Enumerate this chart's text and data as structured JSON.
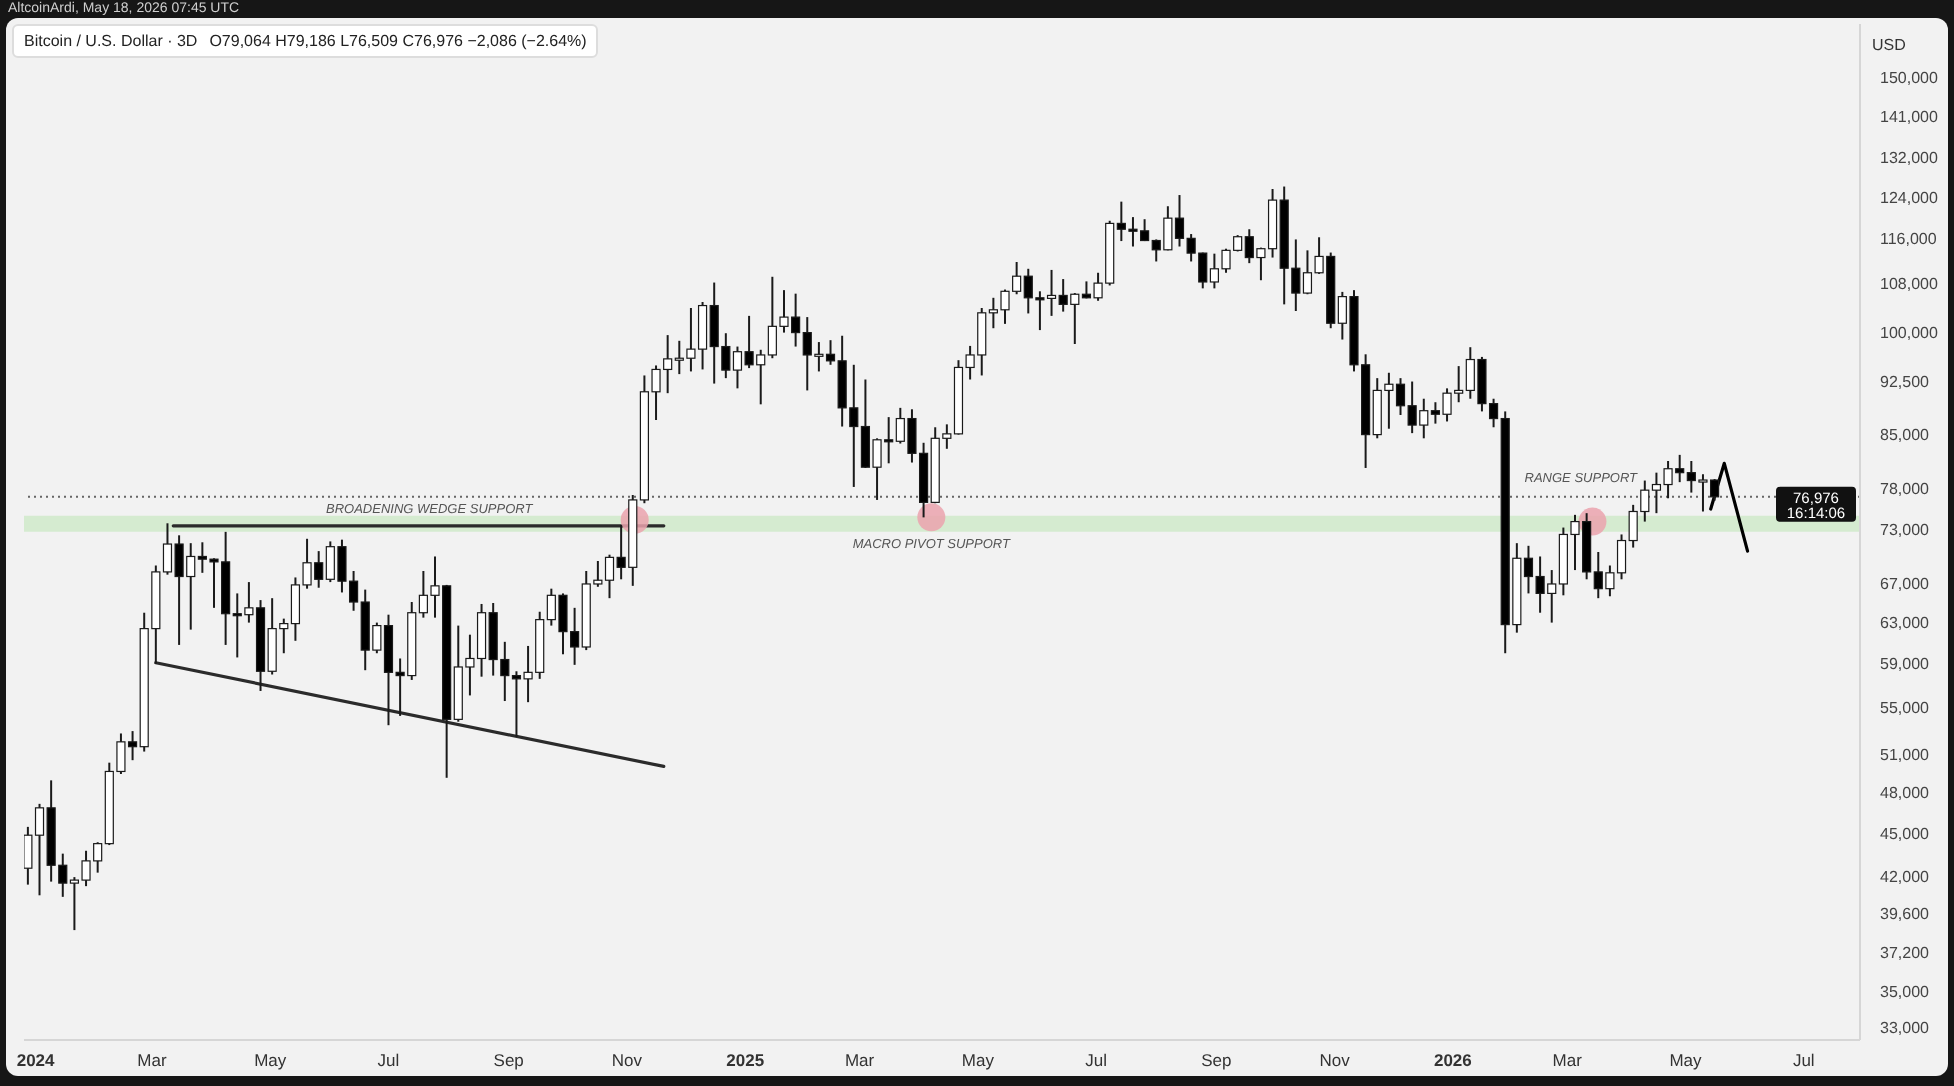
{
  "chart_data": {
    "type": "candlestick",
    "title": "Bitcoin / U.S. Dollar · 3D",
    "subtitle": "O79,064 H79,186 L76,509 C76,976 −2,086 (−2.64%)",
    "ylabel": "USD",
    "annotations": [
      "AltcoinArdi, May 18, 2026 07:45 UTC",
      {
        "text": "BROADENING WEDGE SUPPORT",
        "x": "2024-07-22",
        "y": 73500
      },
      {
        "text": "MACRO PIVOT SUPPORT",
        "x": "2025-04-07",
        "y": 74500
      },
      {
        "text": "RANGE SUPPORT",
        "x": "2026-03-08",
        "y": 74700
      }
    ],
    "x": [
      "2023-12-28",
      "2024-01-03",
      "2024-01-09",
      "2024-01-15",
      "2024-01-21",
      "2024-01-27",
      "2024-02-02",
      "2024-02-08",
      "2024-02-14",
      "2024-02-20",
      "2024-02-26",
      "2024-03-03",
      "2024-03-09",
      "2024-03-15",
      "2024-03-21",
      "2024-03-27",
      "2024-04-02",
      "2024-04-08",
      "2024-04-14",
      "2024-04-20",
      "2024-04-26",
      "2024-05-02",
      "2024-05-08",
      "2024-05-14",
      "2024-05-20",
      "2024-05-26",
      "2024-06-01",
      "2024-06-07",
      "2024-06-13",
      "2024-06-19",
      "2024-06-25",
      "2024-07-01",
      "2024-07-07",
      "2024-07-13",
      "2024-07-19",
      "2024-07-25",
      "2024-07-31",
      "2024-08-06",
      "2024-08-12",
      "2024-08-18",
      "2024-08-24",
      "2024-08-30",
      "2024-09-05",
      "2024-09-11",
      "2024-09-17",
      "2024-09-23",
      "2024-09-29",
      "2024-10-05",
      "2024-10-11",
      "2024-10-17",
      "2024-10-23",
      "2024-10-29",
      "2024-11-04",
      "2024-11-10",
      "2024-11-16",
      "2024-11-22",
      "2024-11-28",
      "2024-12-04",
      "2024-12-10",
      "2024-12-16",
      "2024-12-22",
      "2024-12-28",
      "2025-01-03",
      "2025-01-09",
      "2025-01-15",
      "2025-01-21",
      "2025-01-27",
      "2025-02-02",
      "2025-02-08",
      "2025-02-14",
      "2025-02-20",
      "2025-02-26",
      "2025-03-04",
      "2025-03-10",
      "2025-03-16",
      "2025-03-22",
      "2025-03-28",
      "2025-04-03",
      "2025-04-09",
      "2025-04-15",
      "2025-04-21",
      "2025-04-27",
      "2025-05-03",
      "2025-05-09",
      "2025-05-15",
      "2025-05-21",
      "2025-05-27",
      "2025-06-02",
      "2025-06-08",
      "2025-06-14",
      "2025-06-20",
      "2025-06-26",
      "2025-07-02",
      "2025-07-08",
      "2025-07-14",
      "2025-07-20",
      "2025-07-26",
      "2025-08-01",
      "2025-08-07",
      "2025-08-13",
      "2025-08-19",
      "2025-08-25",
      "2025-08-31",
      "2025-09-06",
      "2025-09-12",
      "2025-09-18",
      "2025-09-24",
      "2025-09-30",
      "2025-10-06",
      "2025-10-12",
      "2025-10-18",
      "2025-10-24",
      "2025-10-30",
      "2025-11-05",
      "2025-11-11",
      "2025-11-17",
      "2025-11-23",
      "2025-11-29",
      "2025-12-05",
      "2025-12-11",
      "2025-12-17",
      "2025-12-23",
      "2025-12-29",
      "2026-01-04",
      "2026-01-10",
      "2026-01-16",
      "2026-01-22",
      "2026-01-28",
      "2026-02-03",
      "2026-02-09",
      "2026-02-15",
      "2026-02-21",
      "2026-02-27",
      "2026-03-05",
      "2026-03-11",
      "2026-03-17",
      "2026-03-23",
      "2026-03-29",
      "2026-04-04",
      "2026-04-10",
      "2026-04-16",
      "2026-04-22",
      "2026-04-28",
      "2026-05-04",
      "2026-05-10",
      "2026-05-16"
    ],
    "ohlc": [
      [
        42600,
        45500,
        41500,
        44900
      ],
      [
        44900,
        47200,
        40800,
        46900
      ],
      [
        46900,
        49000,
        41700,
        42800
      ],
      [
        42800,
        43600,
        40700,
        41600
      ],
      [
        41600,
        42000,
        38600,
        41800
      ],
      [
        41800,
        43800,
        41400,
        43100
      ],
      [
        43100,
        44400,
        42300,
        44300
      ],
      [
        44300,
        50400,
        44200,
        49700
      ],
      [
        49700,
        52800,
        49500,
        52100
      ],
      [
        52100,
        53000,
        50600,
        51700
      ],
      [
        51700,
        64000,
        51300,
        62400
      ],
      [
        62400,
        69000,
        59000,
        68300
      ],
      [
        68300,
        73800,
        68000,
        71400
      ],
      [
        71400,
        72400,
        60800,
        67800
      ],
      [
        67800,
        71500,
        62300,
        70000
      ],
      [
        70000,
        71600,
        68200,
        69700
      ],
      [
        69700,
        69800,
        64500,
        69400
      ],
      [
        69400,
        72800,
        60800,
        63900
      ],
      [
        63900,
        66000,
        59600,
        63800
      ],
      [
        63800,
        67200,
        63000,
        64500
      ],
      [
        64500,
        65300,
        56500,
        58300
      ],
      [
        58300,
        65500,
        58000,
        62400
      ],
      [
        62400,
        63400,
        60000,
        62900
      ],
      [
        62900,
        67700,
        61200,
        66900
      ],
      [
        66900,
        72000,
        66500,
        69300
      ],
      [
        69300,
        70600,
        66600,
        67500
      ],
      [
        67500,
        71700,
        67200,
        71100
      ],
      [
        71100,
        71900,
        66100,
        67300
      ],
      [
        67300,
        68400,
        64200,
        65100
      ],
      [
        65100,
        66400,
        58400,
        60300
      ],
      [
        60300,
        63000,
        60000,
        62700
      ],
      [
        62700,
        63800,
        53500,
        58200
      ],
      [
        58200,
        59500,
        54300,
        57900
      ],
      [
        57900,
        65100,
        57500,
        64000
      ],
      [
        64000,
        68400,
        63500,
        65800
      ],
      [
        65800,
        70000,
        63500,
        66800
      ],
      [
        66800,
        66900,
        49200,
        54000
      ],
      [
        54000,
        62700,
        53800,
        58700
      ],
      [
        58700,
        61800,
        56100,
        59500
      ],
      [
        59500,
        64900,
        57800,
        64000
      ],
      [
        64000,
        65000,
        57900,
        59400
      ],
      [
        59400,
        61100,
        55600,
        57900
      ],
      [
        57900,
        58300,
        52500,
        57600
      ],
      [
        57600,
        60700,
        55500,
        58200
      ],
      [
        58200,
        64100,
        57600,
        63300
      ],
      [
        63300,
        66500,
        62700,
        65800
      ],
      [
        65800,
        66000,
        59900,
        62100
      ],
      [
        62100,
        64500,
        58900,
        60600
      ],
      [
        60600,
        68400,
        60300,
        67000
      ],
      [
        67000,
        69500,
        66700,
        67400
      ],
      [
        67400,
        70200,
        65500,
        69900
      ],
      [
        69900,
        73600,
        67500,
        68800
      ],
      [
        68800,
        77200,
        66800,
        76600
      ],
      [
        76600,
        93400,
        76200,
        91000
      ],
      [
        91000,
        94900,
        87000,
        94300
      ],
      [
        94300,
        99600,
        90800,
        95900
      ],
      [
        95900,
        98700,
        93600,
        96000
      ],
      [
        96000,
        104000,
        94000,
        97400
      ],
      [
        97400,
        105000,
        94300,
        104400
      ],
      [
        104400,
        108300,
        92200,
        97800
      ],
      [
        97800,
        99900,
        93000,
        94200
      ],
      [
        94200,
        97800,
        91500,
        97000
      ],
      [
        97000,
        102700,
        94500,
        95000
      ],
      [
        95000,
        97300,
        89200,
        96500
      ],
      [
        96500,
        109300,
        96000,
        101000
      ],
      [
        101000,
        107000,
        100000,
        102500
      ],
      [
        102500,
        106400,
        97800,
        100000
      ],
      [
        100000,
        102500,
        91200,
        96500
      ],
      [
        96500,
        98500,
        94000,
        96600
      ],
      [
        96600,
        98800,
        95000,
        95600
      ],
      [
        95600,
        99500,
        86100,
        88700
      ],
      [
        88700,
        95000,
        78200,
        86100
      ],
      [
        86100,
        92800,
        80600,
        80700
      ],
      [
        80700,
        84500,
        76600,
        84300
      ],
      [
        84300,
        87400,
        81200,
        84100
      ],
      [
        84100,
        88700,
        83800,
        87200
      ],
      [
        87200,
        88500,
        81300,
        82500
      ],
      [
        82500,
        83900,
        74500,
        76300
      ],
      [
        76300,
        86000,
        76200,
        84500
      ],
      [
        84500,
        86400,
        83100,
        85100
      ],
      [
        85100,
        95700,
        85000,
        94600
      ],
      [
        94600,
        97900,
        92800,
        96500
      ],
      [
        96500,
        104000,
        93400,
        103200
      ],
      [
        103200,
        105700,
        100700,
        103700
      ],
      [
        103700,
        107100,
        101400,
        106800
      ],
      [
        106800,
        111900,
        106300,
        109400
      ],
      [
        109400,
        110700,
        103100,
        105700
      ],
      [
        105700,
        106800,
        100400,
        105600
      ],
      [
        105600,
        110500,
        102700,
        106100
      ],
      [
        106100,
        108900,
        103400,
        104600
      ],
      [
        104600,
        106500,
        98200,
        106300
      ],
      [
        106300,
        108500,
        105600,
        105700
      ],
      [
        105700,
        110000,
        105200,
        108200
      ],
      [
        108200,
        119500,
        107800,
        119000
      ],
      [
        119000,
        123200,
        115700,
        117900
      ],
      [
        117900,
        120200,
        114700,
        117600
      ],
      [
        117600,
        119800,
        115700,
        115800
      ],
      [
        115800,
        116000,
        112000,
        114100
      ],
      [
        114100,
        122300,
        114000,
        120000
      ],
      [
        120000,
        124500,
        114700,
        116200
      ],
      [
        116200,
        117000,
        112000,
        113500
      ],
      [
        113500,
        113600,
        107300,
        108400
      ],
      [
        108400,
        113400,
        107300,
        110700
      ],
      [
        110700,
        114300,
        110000,
        114000
      ],
      [
        114000,
        116800,
        113800,
        116500
      ],
      [
        116500,
        117900,
        111700,
        112700
      ],
      [
        112700,
        114500,
        108700,
        114300
      ],
      [
        114300,
        125700,
        112700,
        123500
      ],
      [
        123500,
        126200,
        104600,
        110800
      ],
      [
        110800,
        116000,
        103500,
        106500
      ],
      [
        106500,
        114000,
        106300,
        110000
      ],
      [
        110000,
        116400,
        109800,
        112900
      ],
      [
        112900,
        113600,
        100700,
        101500
      ],
      [
        101500,
        106700,
        98900,
        105900
      ],
      [
        105900,
        107000,
        94000,
        95000
      ],
      [
        95000,
        96600,
        80600,
        85000
      ],
      [
        85000,
        93000,
        84500,
        91200
      ],
      [
        91200,
        93800,
        85800,
        92100
      ],
      [
        92100,
        93000,
        87700,
        89000
      ],
      [
        89000,
        92500,
        85200,
        86300
      ],
      [
        86300,
        90000,
        84500,
        88300
      ],
      [
        88300,
        89500,
        86500,
        87800
      ],
      [
        87800,
        91500,
        86800,
        90800
      ],
      [
        90800,
        94800,
        89500,
        91200
      ],
      [
        91200,
        97700,
        90000,
        95800
      ],
      [
        95800,
        96200,
        88200,
        89300
      ],
      [
        89300,
        90000,
        86000,
        87200
      ],
      [
        87200,
        88200,
        60000,
        62800
      ],
      [
        62800,
        71500,
        62000,
        69800
      ],
      [
        69800,
        71200,
        66000,
        67800
      ],
      [
        67800,
        70000,
        64000,
        66000
      ],
      [
        66000,
        68500,
        63000,
        67000
      ],
      [
        67000,
        73300,
        65800,
        72500
      ],
      [
        72500,
        74800,
        68500,
        74000
      ],
      [
        74000,
        75000,
        67500,
        68300
      ],
      [
        68300,
        70500,
        65500,
        66500
      ],
      [
        66500,
        69000,
        65700,
        68200
      ],
      [
        68200,
        72500,
        67500,
        71800
      ],
      [
        71800,
        76000,
        71000,
        75200
      ],
      [
        75200,
        79000,
        74000,
        77800
      ],
      [
        77800,
        80000,
        75000,
        78500
      ],
      [
        78500,
        81500,
        76800,
        80500
      ],
      [
        80500,
        82300,
        78800,
        80000
      ],
      [
        80000,
        81500,
        77500,
        79000
      ],
      [
        79000,
        79800,
        75200,
        79064
      ],
      [
        79064,
        79186,
        76509,
        76976
      ]
    ],
    "color": "#1a1a1a",
    "colors": [
      "#ffffff",
      "#ffffff",
      "#000000",
      "#000000",
      "#ffffff",
      "#ffffff",
      "#ffffff",
      "#ffffff",
      "#ffffff",
      "#000000",
      "#ffffff",
      "#ffffff",
      "#ffffff",
      "#000000",
      "#ffffff",
      "#000000",
      "#000000",
      "#000000",
      "#000000",
      "#ffffff",
      "#000000",
      "#ffffff",
      "#ffffff",
      "#ffffff",
      "#ffffff",
      "#000000",
      "#ffffff",
      "#000000",
      "#000000",
      "#000000",
      "#ffffff",
      "#000000",
      "#000000",
      "#ffffff",
      "#ffffff",
      "#ffffff",
      "#000000",
      "#ffffff",
      "#ffffff",
      "#ffffff",
      "#000000",
      "#000000",
      "#000000",
      "#ffffff",
      "#ffffff",
      "#ffffff",
      "#000000",
      "#000000",
      "#ffffff",
      "#ffffff",
      "#ffffff",
      "#000000",
      "#ffffff",
      "#ffffff",
      "#ffffff",
      "#ffffff",
      "#ffffff",
      "#ffffff",
      "#ffffff",
      "#000000",
      "#000000",
      "#ffffff",
      "#000000",
      "#ffffff",
      "#ffffff",
      "#ffffff",
      "#000000",
      "#000000",
      "#ffffff",
      "#000000",
      "#000000",
      "#000000",
      "#000000",
      "#ffffff",
      "#000000",
      "#ffffff",
      "#000000",
      "#000000",
      "#ffffff",
      "#ffffff",
      "#ffffff",
      "#ffffff",
      "#ffffff",
      "#ffffff",
      "#ffffff",
      "#ffffff",
      "#000000",
      "#000000",
      "#ffffff",
      "#000000",
      "#ffffff",
      "#000000",
      "#ffffff",
      "#ffffff",
      "#000000",
      "#000000",
      "#000000",
      "#000000",
      "#ffffff",
      "#000000",
      "#000000",
      "#000000",
      "#ffffff",
      "#ffffff",
      "#ffffff",
      "#000000",
      "#ffffff",
      "#ffffff",
      "#000000",
      "#000000",
      "#ffffff",
      "#ffffff",
      "#000000",
      "#ffffff",
      "#000000",
      "#000000",
      "#ffffff",
      "#ffffff",
      "#000000",
      "#000000",
      "#ffffff",
      "#000000",
      "#ffffff",
      "#ffffff",
      "#ffffff",
      "#000000",
      "#000000",
      "#000000",
      "#ffffff",
      "#000000",
      "#000000",
      "#ffffff",
      "#ffffff",
      "#ffffff",
      "#000000",
      "#000000",
      "#ffffff",
      "#ffffff",
      "#ffffff",
      "#ffffff",
      "#ffffff",
      "#ffffff",
      "#000000",
      "#000000",
      "#ffffff",
      "#000000"
    ],
    "series": [
      {
        "type": "line",
        "x": [
          "2024-03-12",
          "2024-11-20"
        ],
        "values": [
          73500,
          73500
        ],
        "color": "#2b2b2b"
      },
      {
        "type": "line",
        "x": [
          "2024-03-03",
          "2024-11-20"
        ],
        "values": [
          59100,
          50100
        ],
        "color": "#2b2b2b"
      },
      {
        "type": "line",
        "x": [
          "2026-05-14",
          "2026-05-21",
          "2026-06-02"
        ],
        "values": [
          75500,
          81200,
          70600
        ],
        "color": "#000000"
      },
      {
        "type": "scatter",
        "x": [
          "2024-11-05",
          "2025-04-07",
          "2026-03-14"
        ],
        "values": [
          74200,
          74500,
          74000
        ],
        "color": "#eba3ae",
        "marker": "circle"
      }
    ],
    "ref_lines": [
      {
        "axis": "y",
        "value": 76976,
        "label": "76,976\n16:14:06",
        "color": "#666666",
        "line_style": "dotted"
      }
    ],
    "bands": [
      {
        "axis": "y",
        "from": 72800,
        "to": 74700,
        "color": "#d5ebd0"
      }
    ],
    "xlim": [
      "2023-12-26",
      "2026-07-30"
    ],
    "xticks": [
      {
        "value": "2024-01-01",
        "label": "2024"
      },
      {
        "value": "2024-03-01",
        "label": "Mar"
      },
      {
        "value": "2024-05-01",
        "label": "May"
      },
      {
        "value": "2024-07-01",
        "label": "Jul"
      },
      {
        "value": "2024-09-01",
        "label": "Sep"
      },
      {
        "value": "2024-11-01",
        "label": "Nov"
      },
      {
        "value": "2025-01-01",
        "label": "2025"
      },
      {
        "value": "2025-03-01",
        "label": "Mar"
      },
      {
        "value": "2025-05-01",
        "label": "May"
      },
      {
        "value": "2025-07-01",
        "label": "Jul"
      },
      {
        "value": "2025-09-01",
        "label": "Sep"
      },
      {
        "value": "2025-11-01",
        "label": "Nov"
      },
      {
        "value": "2026-01-01",
        "label": "2026"
      },
      {
        "value": "2026-03-01",
        "label": "Mar"
      },
      {
        "value": "2026-05-01",
        "label": "May"
      },
      {
        "value": "2026-07-01",
        "label": "Jul"
      }
    ],
    "ylim": [
      32400,
      163500
    ],
    "yticks": [
      {
        "value": 33000,
        "label": "33,000"
      },
      {
        "value": 35000,
        "label": "35,000"
      },
      {
        "value": 37200,
        "label": "37,200"
      },
      {
        "value": 39600,
        "label": "39,600"
      },
      {
        "value": 42000,
        "label": "42,000"
      },
      {
        "value": 45000,
        "label": "45,000"
      },
      {
        "value": 48000,
        "label": "48,000"
      },
      {
        "value": 51000,
        "label": "51,000"
      },
      {
        "value": 55000,
        "label": "55,000"
      },
      {
        "value": 59000,
        "label": "59,000"
      },
      {
        "value": 63000,
        "label": "63,000"
      },
      {
        "value": 67000,
        "label": "67,000"
      },
      {
        "value": 73000,
        "label": "73,000"
      },
      {
        "value": 78000,
        "label": "78,000"
      },
      {
        "value": 85000,
        "label": "85,000"
      },
      {
        "value": 92500,
        "label": "92,500"
      },
      {
        "value": 100000,
        "label": "100,000"
      },
      {
        "value": 108000,
        "label": "108,000"
      },
      {
        "value": 116000,
        "label": "116,000"
      },
      {
        "value": 124000,
        "label": "124,000"
      },
      {
        "value": 132000,
        "label": "132,000"
      },
      {
        "value": 141000,
        "label": "141,000"
      },
      {
        "value": 150000,
        "label": "150,000"
      }
    ],
    "log": true
  }
}
